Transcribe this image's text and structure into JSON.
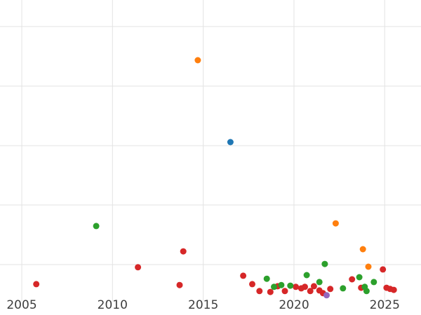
{
  "chart_data": {
    "type": "scatter",
    "title": "",
    "xlabel": "",
    "ylabel": "",
    "xlim": [
      2003.8,
      2027.0
    ],
    "ylim": [
      0,
      100
    ],
    "x_ticks": [
      2005,
      2010,
      2015,
      2020,
      2025
    ],
    "x_tick_labels": [
      "2005",
      "2010",
      "2015",
      "2020",
      "2025"
    ],
    "y_gridline_values": [
      12.1,
      31.9,
      51.6,
      71.4,
      91.2
    ],
    "grid": true,
    "legend_position": "none",
    "background_color": "#ffffff",
    "gridline_color": "#e3e3e3",
    "tick_label_color": "#3d3d3d",
    "marker_radius": 4.5,
    "series": [
      {
        "name": "red",
        "color": "#d62728",
        "points": [
          [
            2005.8,
            5.6
          ],
          [
            2011.4,
            11.2
          ],
          [
            2013.7,
            5.3
          ],
          [
            2013.9,
            16.5
          ],
          [
            2017.2,
            8.4
          ],
          [
            2017.7,
            5.6
          ],
          [
            2018.1,
            3.3
          ],
          [
            2018.7,
            3.0
          ],
          [
            2019.1,
            4.9
          ],
          [
            2019.5,
            3.3
          ],
          [
            2020.1,
            4.7
          ],
          [
            2020.4,
            4.2
          ],
          [
            2020.6,
            4.7
          ],
          [
            2020.9,
            3.3
          ],
          [
            2021.1,
            4.9
          ],
          [
            2021.4,
            3.5
          ],
          [
            2021.6,
            2.6
          ],
          [
            2022.0,
            4.0
          ],
          [
            2023.2,
            7.2
          ],
          [
            2023.7,
            4.4
          ],
          [
            2024.9,
            10.5
          ],
          [
            2025.1,
            4.4
          ],
          [
            2025.3,
            4.0
          ],
          [
            2025.5,
            3.7
          ]
        ]
      },
      {
        "name": "green",
        "color": "#2ca02c",
        "points": [
          [
            2009.1,
            24.9
          ],
          [
            2018.5,
            7.4
          ],
          [
            2018.9,
            4.7
          ],
          [
            2019.3,
            5.3
          ],
          [
            2019.8,
            5.1
          ],
          [
            2020.7,
            8.6
          ],
          [
            2021.4,
            6.3
          ],
          [
            2021.7,
            12.3
          ],
          [
            2022.7,
            4.2
          ],
          [
            2023.6,
            7.9
          ],
          [
            2023.9,
            4.7
          ],
          [
            2024.0,
            3.3
          ],
          [
            2024.4,
            6.3
          ]
        ]
      },
      {
        "name": "orange",
        "color": "#ff7f0e",
        "points": [
          [
            2014.7,
            80.0
          ],
          [
            2022.3,
            25.8
          ],
          [
            2023.8,
            17.2
          ],
          [
            2024.1,
            11.4
          ]
        ]
      },
      {
        "name": "blue",
        "color": "#1f77b4",
        "points": [
          [
            2016.5,
            52.8
          ]
        ]
      },
      {
        "name": "purple",
        "color": "#9467bd",
        "points": [
          [
            2021.8,
            1.9
          ]
        ]
      }
    ]
  }
}
